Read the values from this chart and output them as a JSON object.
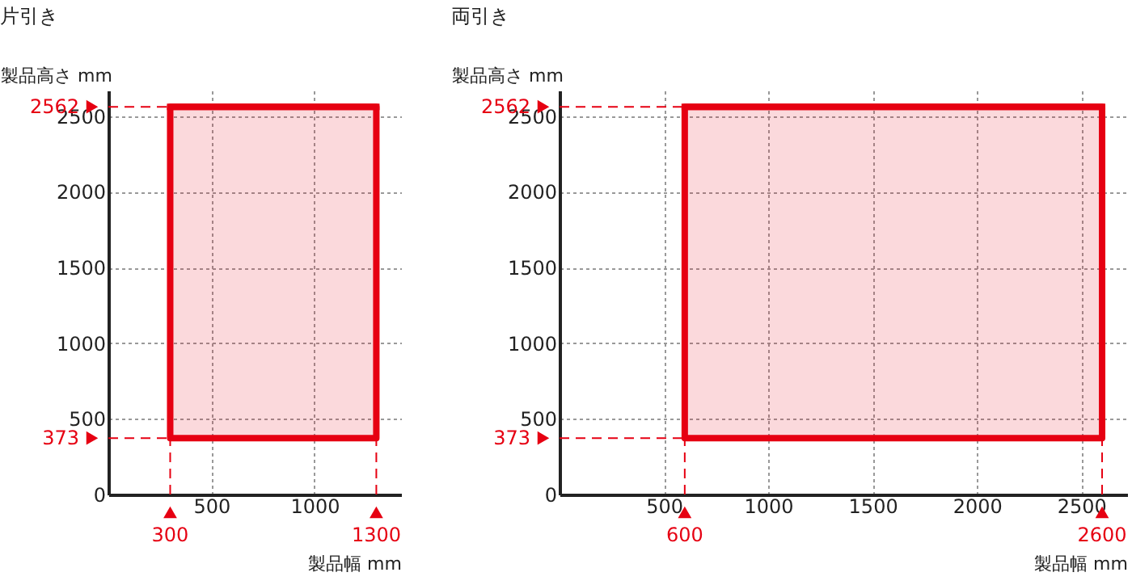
{
  "chart_data": [
    {
      "type": "line",
      "title": "片引き",
      "xlabel": "製品幅 mm",
      "ylabel": "製品高さ mm",
      "xlim": [
        0,
        1420
      ],
      "ylim": [
        0,
        2670
      ],
      "xticks": [
        500,
        1000
      ],
      "yticks": [
        0,
        500,
        1000,
        1500,
        2000,
        2500
      ],
      "grid": true,
      "series": [
        {
          "color": "#e60012",
          "x": [
            300,
            1300
          ],
          "values": [
            2562,
            2562
          ],
          "lower": [
            373,
            373
          ],
          "upper": [
            2562,
            2562
          ]
        }
      ],
      "ref_lines": [
        {
          "axis": "y",
          "value": 2562,
          "label": "2562",
          "color": "#e60012",
          "line_style": "dashed"
        },
        {
          "axis": "y",
          "value": 373,
          "label": "373",
          "color": "#e60012",
          "line_style": "dashed"
        },
        {
          "axis": "x",
          "value": 300,
          "label": "300",
          "color": "#e60012",
          "line_style": "dashed"
        },
        {
          "axis": "x",
          "value": 1300,
          "label": "1300",
          "color": "#e60012",
          "line_style": "dashed"
        }
      ]
    },
    {
      "type": "line",
      "title": "両引き",
      "xlabel": "製品幅 mm",
      "ylabel": "製品高さ mm",
      "xlim": [
        0,
        2720
      ],
      "ylim": [
        0,
        2670
      ],
      "xticks": [
        500,
        1000,
        1500,
        2000,
        2500
      ],
      "yticks": [
        0,
        500,
        1000,
        1500,
        2000,
        2500
      ],
      "grid": true,
      "series": [
        {
          "color": "#e60012",
          "x": [
            600,
            2600
          ],
          "values": [
            2562,
            2562
          ],
          "lower": [
            373,
            373
          ],
          "upper": [
            2562,
            2562
          ]
        }
      ],
      "ref_lines": [
        {
          "axis": "y",
          "value": 2562,
          "label": "2562",
          "color": "#e60012",
          "line_style": "dashed"
        },
        {
          "axis": "y",
          "value": 373,
          "label": "373",
          "color": "#e60012",
          "line_style": "dashed"
        },
        {
          "axis": "x",
          "value": 600,
          "label": "600",
          "color": "#e60012",
          "line_style": "dashed"
        },
        {
          "axis": "x",
          "value": 2600,
          "label": "2600",
          "color": "#e60012",
          "line_style": "dashed"
        }
      ]
    }
  ]
}
